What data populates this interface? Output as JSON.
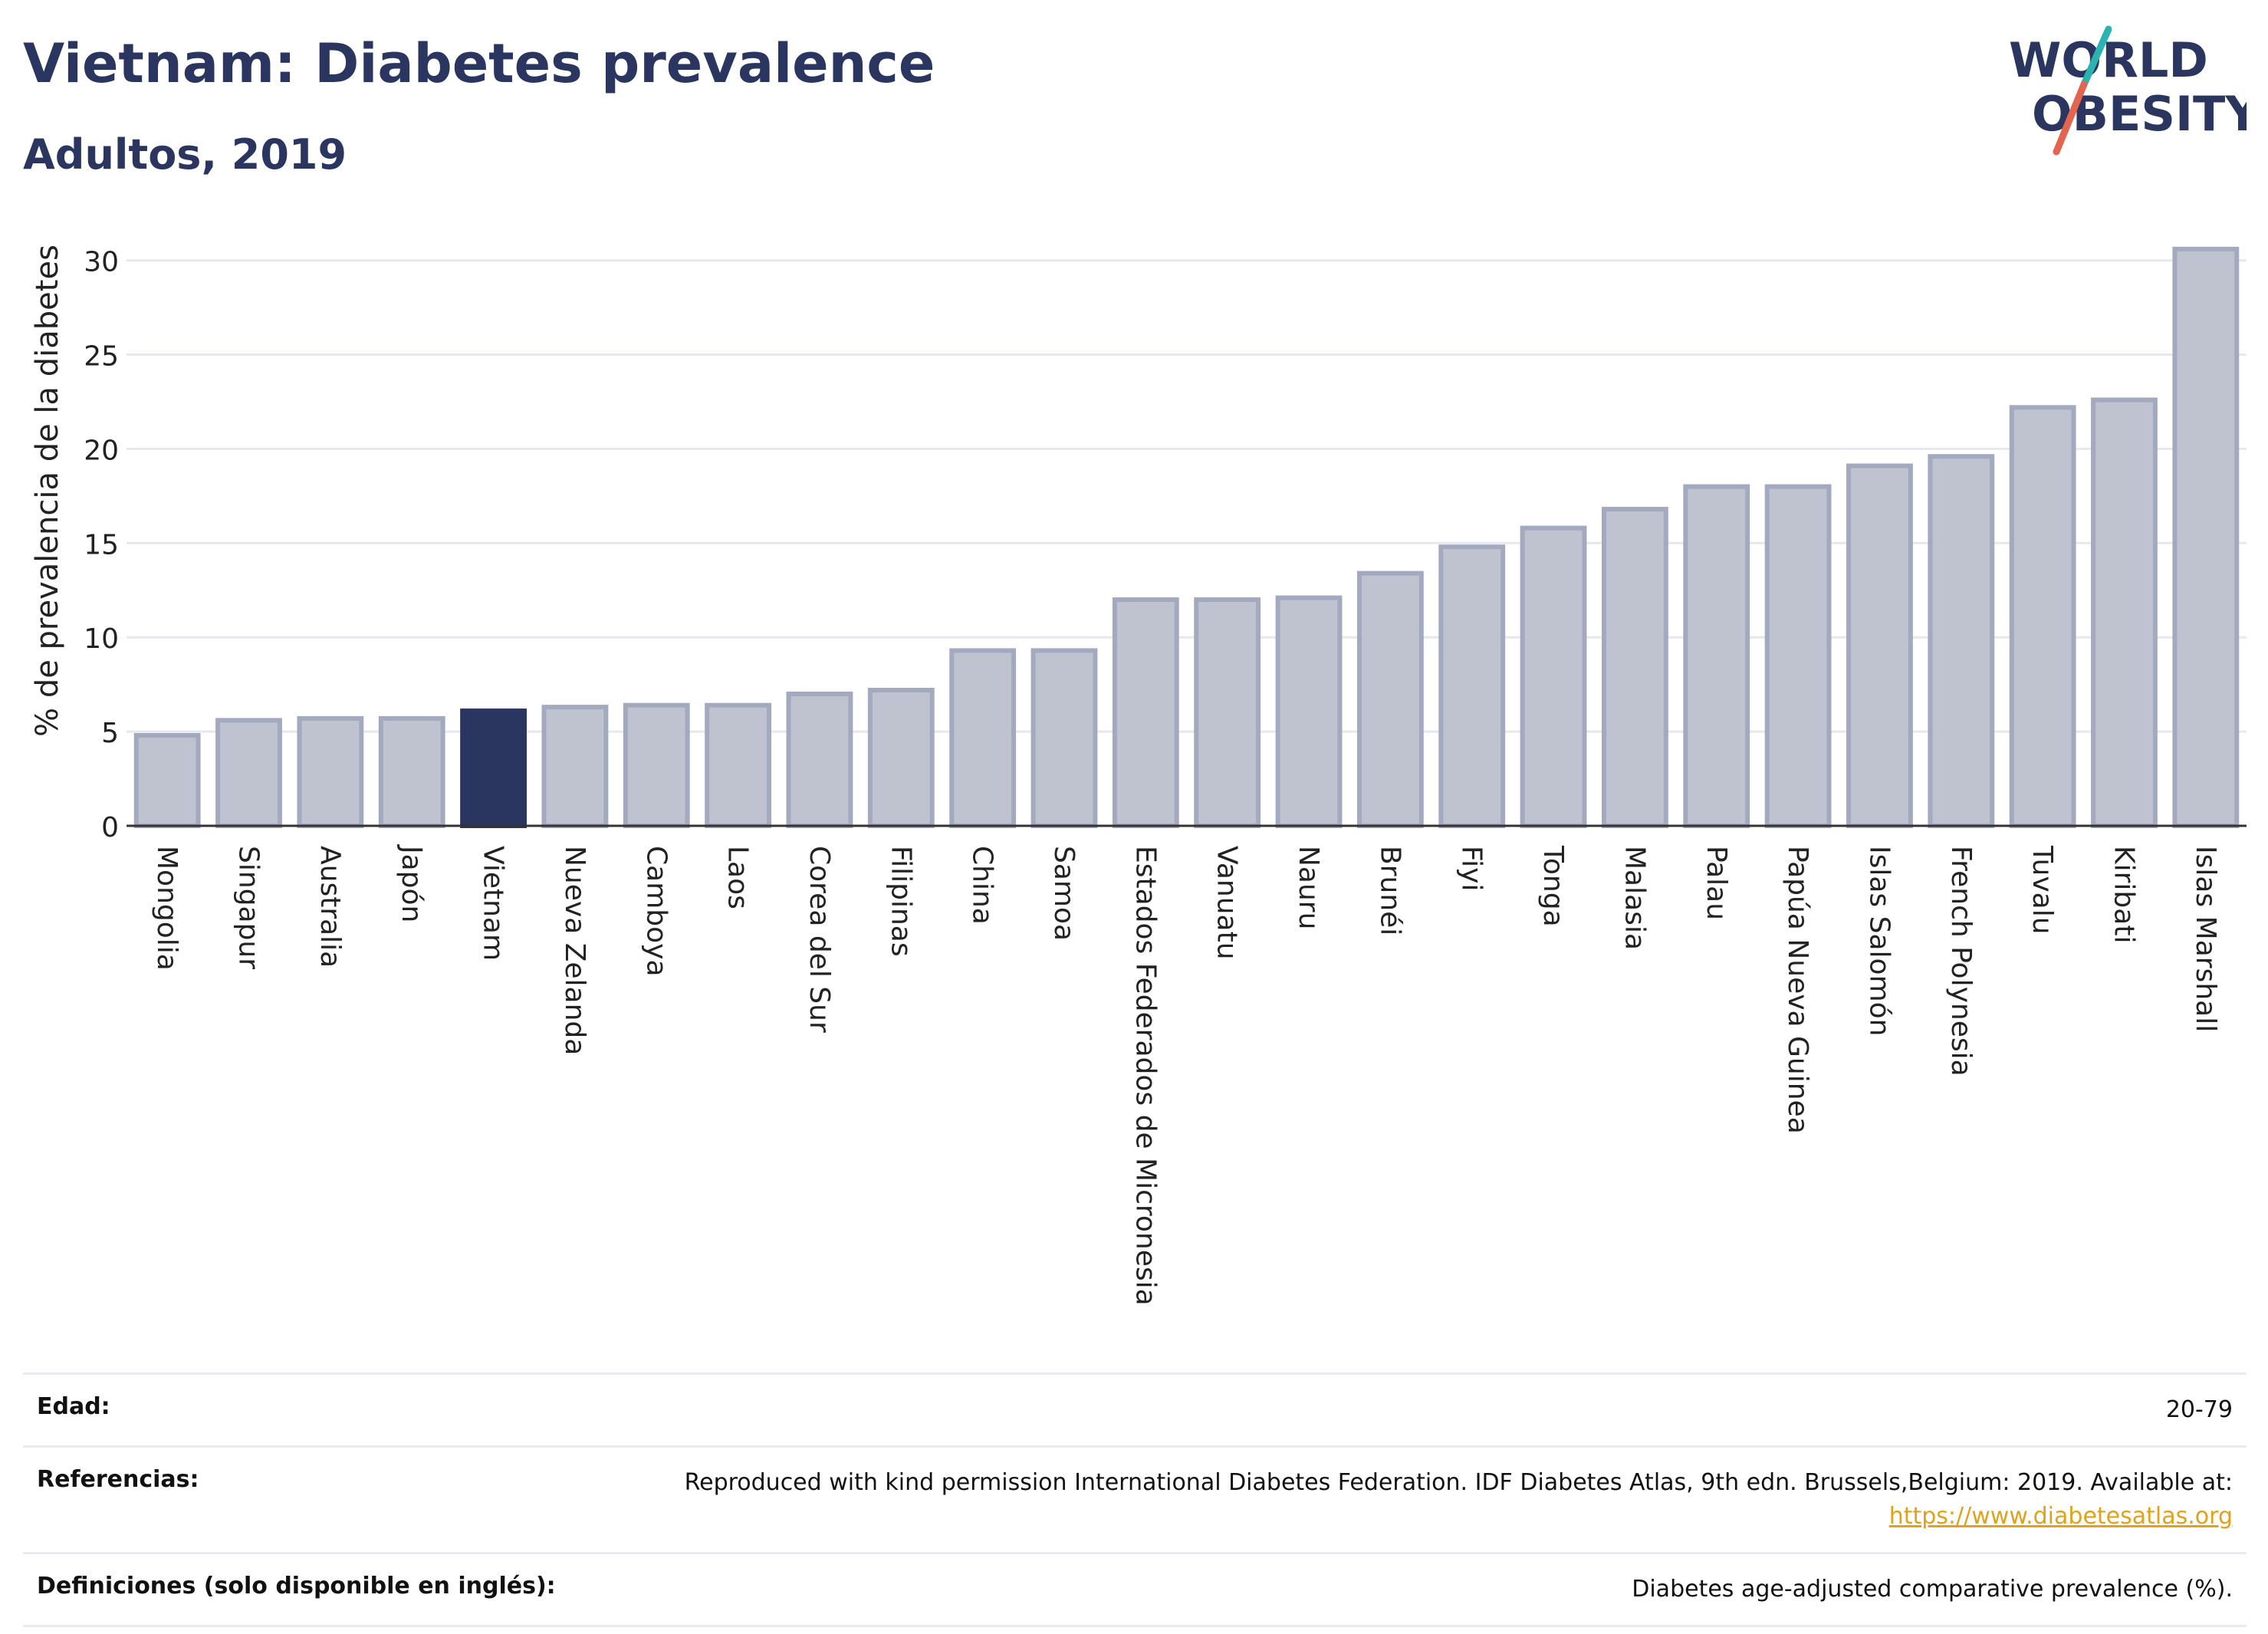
{
  "header": {
    "title": "Vietnam: Diabetes prevalence",
    "subtitle": "Adultos, 2019"
  },
  "logo": {
    "line1": "WORLD",
    "line2": "OBESITY",
    "colors": {
      "text": "#2a3560",
      "slash_top": "#2bb3b1",
      "slash_bottom": "#e4654f"
    }
  },
  "chart_data": {
    "type": "bar",
    "ylabel": "% de prevalencia de la diabetes",
    "ylim": [
      0,
      31
    ],
    "yticks": [
      0,
      5,
      10,
      15,
      20,
      25,
      30
    ],
    "grid": true,
    "highlight": "Vietnam",
    "colors": {
      "bar": "#bfc3d0",
      "bar_stroke": "#a3a9be",
      "highlight": "#2a3560"
    },
    "categories": [
      "Mongolia",
      "Singapur",
      "Australia",
      "Japón",
      "Vietnam",
      "Nueva Zelanda",
      "Camboya",
      "Laos",
      "Corea del Sur",
      "Filipinas",
      "China",
      "Samoa",
      "Estados Federados de Micronesia",
      "Vanuatu",
      "Nauru",
      "Brunéi",
      "Fiyi",
      "Tonga",
      "Malasia",
      "Palau",
      "Papúa Nueva Guinea",
      "Islas Salomón",
      "French Polynesia",
      "Tuvalu",
      "Kiribati",
      "Islas Marshall"
    ],
    "values": [
      4.8,
      5.6,
      5.7,
      5.7,
      6.1,
      6.3,
      6.4,
      6.4,
      7.0,
      7.2,
      9.3,
      9.3,
      12.0,
      12.0,
      12.1,
      13.4,
      14.8,
      15.8,
      16.8,
      18.0,
      18.0,
      19.1,
      19.6,
      22.2,
      22.6,
      30.6
    ]
  },
  "footer": {
    "rows": [
      {
        "label": "Edad:",
        "value": "20-79"
      },
      {
        "label": "Referencias:",
        "value": "Reproduced with kind permission International Diabetes Federation. IDF Diabetes Atlas, 9th edn. Brussels,Belgium: 2019. Available at:",
        "link": "https://www.diabetesatlas.org"
      },
      {
        "label": "Definiciones (solo disponible en inglés):",
        "value": "Diabetes age-adjusted comparative prevalence (%)."
      }
    ]
  }
}
